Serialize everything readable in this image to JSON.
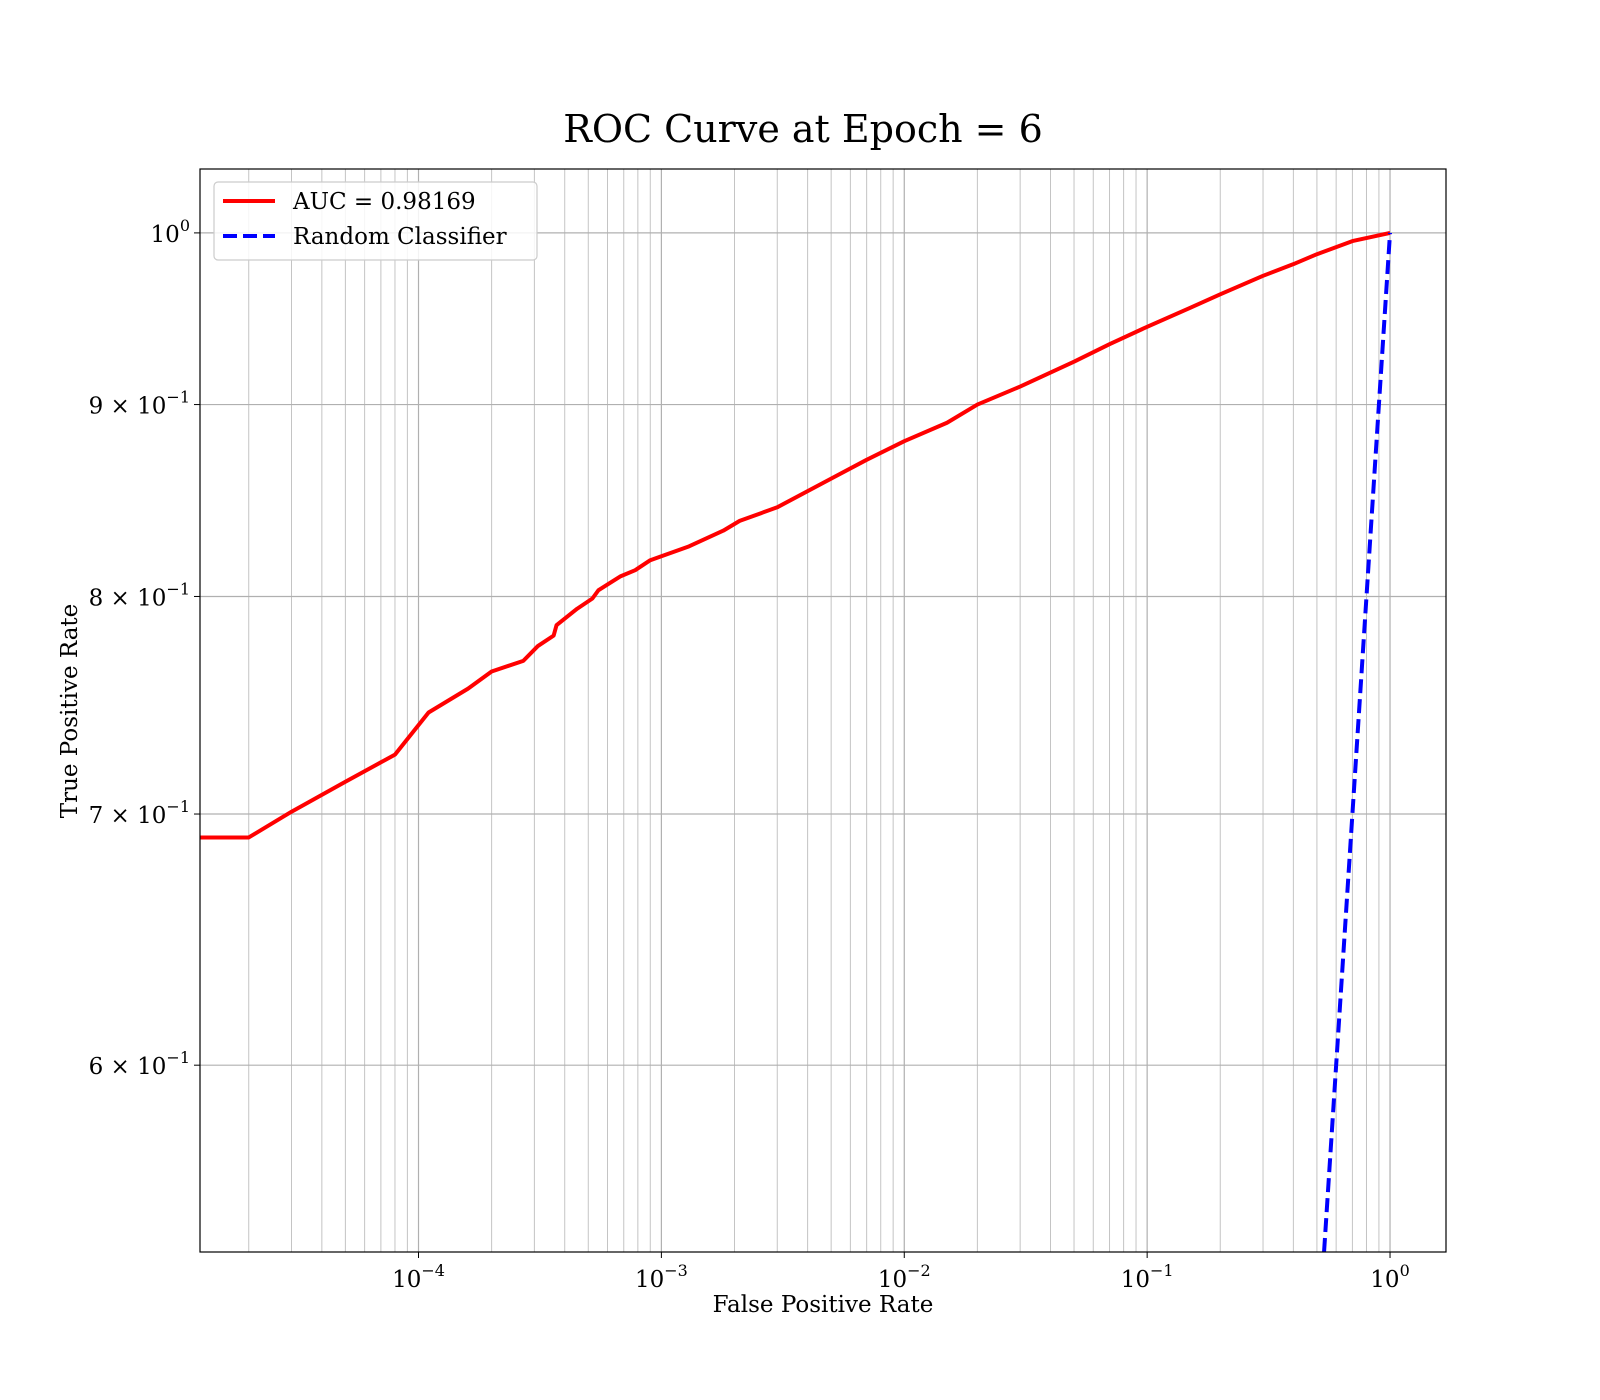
{
  "chart_data": {
    "type": "line",
    "title": "ROC Curve at Epoch = 6",
    "xlabel": "False Positive Rate",
    "ylabel": "True Positive Rate",
    "xscale": "log",
    "yscale": "log",
    "xlim": [
      1.26e-05,
      1.7
    ],
    "ylim": [
      0.535,
      1.04
    ],
    "grid": true,
    "grid_minor": true,
    "legend_position": "upper-left",
    "x_tick_labels": [
      {
        "value": 0.0001,
        "base": "10",
        "exp": "−4"
      },
      {
        "value": 0.001,
        "base": "10",
        "exp": "−3"
      },
      {
        "value": 0.01,
        "base": "10",
        "exp": "−2"
      },
      {
        "value": 0.1,
        "base": "10",
        "exp": "−1"
      },
      {
        "value": 1,
        "base": "10",
        "exp": "0"
      }
    ],
    "y_tick_labels": [
      {
        "value": 0.6,
        "base": "6 × 10",
        "exp": "−1"
      },
      {
        "value": 0.7,
        "base": "7 × 10",
        "exp": "−1"
      },
      {
        "value": 0.8,
        "base": "8 × 10",
        "exp": "−1"
      },
      {
        "value": 0.9,
        "base": "9 × 10",
        "exp": "−1"
      },
      {
        "value": 1.0,
        "base": "10",
        "exp": "0"
      }
    ],
    "series": [
      {
        "name": "AUC = 0.98169",
        "color": "#ff0000",
        "style": "solid",
        "x": [
          1.26e-05,
          2e-05,
          3e-05,
          5e-05,
          8e-05,
          0.00011,
          0.00016,
          0.0002,
          0.00027,
          0.00031,
          0.00036,
          0.00037,
          0.00045,
          0.00052,
          0.00055,
          0.00062,
          0.00068,
          0.00078,
          0.0009,
          0.001,
          0.0013,
          0.0018,
          0.0021,
          0.003,
          0.005,
          0.007,
          0.01,
          0.015,
          0.02,
          0.03,
          0.05,
          0.07,
          0.1,
          0.15,
          0.2,
          0.3,
          0.4,
          0.5,
          0.7,
          1.0
        ],
        "y": [
          0.69,
          0.69,
          0.701,
          0.714,
          0.726,
          0.745,
          0.756,
          0.764,
          0.769,
          0.776,
          0.781,
          0.786,
          0.794,
          0.799,
          0.803,
          0.807,
          0.81,
          0.813,
          0.818,
          0.82,
          0.825,
          0.833,
          0.838,
          0.845,
          0.86,
          0.87,
          0.88,
          0.89,
          0.9,
          0.91,
          0.924,
          0.934,
          0.944,
          0.955,
          0.963,
          0.974,
          0.981,
          0.987,
          0.995,
          1.0
        ]
      },
      {
        "name": "Random Classifier",
        "color": "#0000ff",
        "style": "dashed",
        "x": [
          0.535,
          0.6,
          0.7,
          0.8,
          0.9,
          1.0
        ],
        "y": [
          0.535,
          0.6,
          0.7,
          0.8,
          0.9,
          1.0
        ]
      }
    ]
  }
}
